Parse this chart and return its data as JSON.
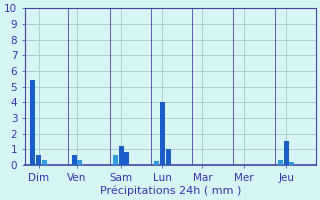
{
  "categories": [
    "Dim",
    "Ven",
    "Sam",
    "Lun",
    "Mar",
    "Mer",
    "Jeu"
  ],
  "bars_data": [
    {
      "values": [
        5.4,
        0.65,
        0.3
      ],
      "colors": [
        "#1a5cc8",
        "#1a5cc8",
        "#3399dd"
      ]
    },
    {
      "values": [
        0.65,
        0.3
      ],
      "colors": [
        "#1a5cc8",
        "#3399dd"
      ]
    },
    {
      "values": [
        0.65,
        1.2,
        0.85
      ],
      "colors": [
        "#3399dd",
        "#1a5cc8",
        "#1a5cc8"
      ]
    },
    {
      "values": [
        0.25,
        4.0,
        1.0
      ],
      "colors": [
        "#3399dd",
        "#1a5cc8",
        "#1a5cc8"
      ]
    },
    {
      "values": [],
      "colors": []
    },
    {
      "values": [],
      "colors": []
    },
    {
      "values": [
        0.3,
        1.5,
        0.2
      ],
      "colors": [
        "#3399dd",
        "#1a5cc8",
        "#3399dd"
      ]
    }
  ],
  "xlabel": "Précipitations 24h ( mm )",
  "ylim": [
    0,
    10
  ],
  "yticks": [
    0,
    1,
    2,
    3,
    4,
    5,
    6,
    7,
    8,
    9,
    10
  ],
  "background_color": "#d8f5f5",
  "grid_color": "#aacccc",
  "spine_color": "#4444aa",
  "text_color": "#3333aa",
  "xlabel_fontsize": 8,
  "tick_fontsize": 7.5,
  "bar_width": 0.12,
  "bar_gap": 0.02,
  "group_width": 1.0
}
